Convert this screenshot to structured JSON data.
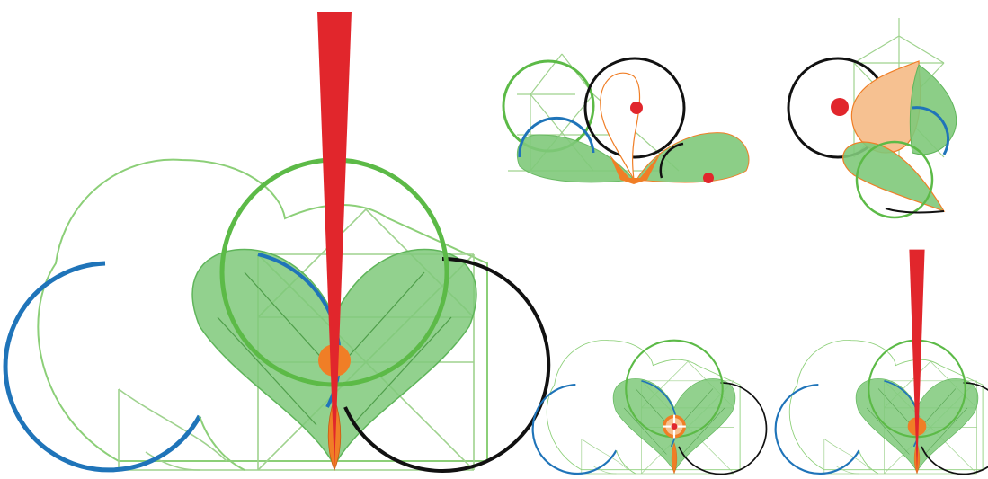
{
  "figure": {
    "panels": [
      {
        "name": "main-construction"
      },
      {
        "name": "top-middle-construction"
      },
      {
        "name": "top-right-construction"
      },
      {
        "name": "bottom-middle-construction"
      },
      {
        "name": "bottom-right-construction"
      }
    ]
  },
  "colors": {
    "green_line": "#5cba47",
    "green_thin": "#8ccf78",
    "green_fill": "#7fc97a",
    "blue": "#1f74b9",
    "black": "#111111",
    "red": "#e1262c",
    "orange": "#f07e26",
    "peach": "#f6c191",
    "bg": "#ffffff"
  }
}
